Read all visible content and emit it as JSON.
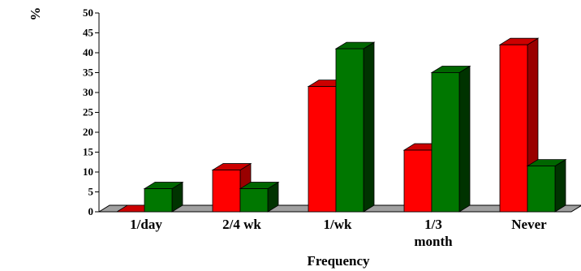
{
  "chart_data": {
    "type": "bar",
    "categories": [
      "1/day",
      "2/4 wk",
      "1/wk",
      "1/3\nmonth",
      "Never"
    ],
    "series": [
      {
        "color": "#ff0000",
        "side_color": "#990000",
        "top_color": "#cc0000",
        "values": [
          0,
          10.5,
          31.5,
          15.5,
          42
        ]
      },
      {
        "color": "#007700",
        "side_color": "#003300",
        "top_color": "#006600",
        "values": [
          5.8,
          5.8,
          41,
          35,
          11.5
        ]
      }
    ],
    "xlabel": "Frequency",
    "ylabel": "%",
    "ylim": [
      0,
      50
    ],
    "yticks": [
      0,
      5,
      10,
      15,
      20,
      25,
      30,
      35,
      40,
      45,
      50
    ],
    "grid": false,
    "floor_color": "#a0a0a0"
  }
}
